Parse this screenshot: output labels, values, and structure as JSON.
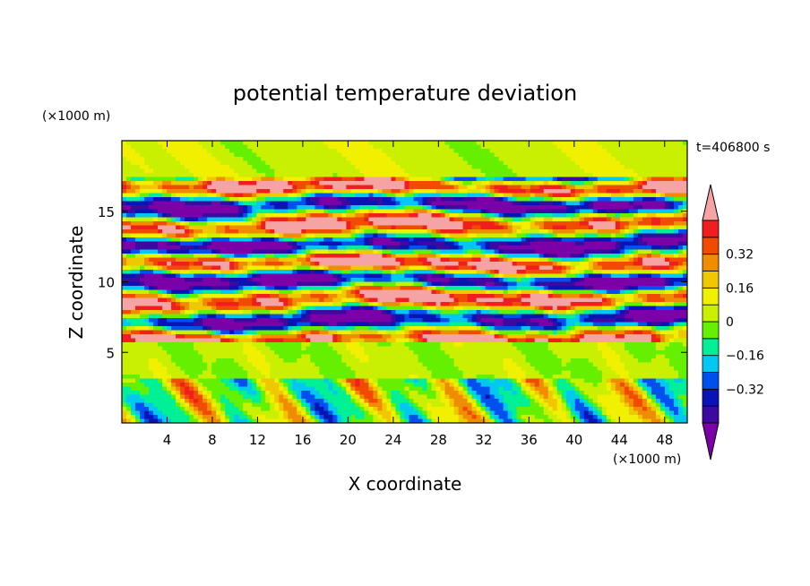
{
  "chart_data": {
    "type": "contour",
    "title": "potential temperature deviation",
    "xlabel": "X coordinate",
    "ylabel": "Z coordinate",
    "x_unit": "(×1000 m)",
    "y_unit": "(×1000 m)",
    "time_label": "t=406800 s",
    "xlim": [
      0,
      50
    ],
    "ylim": [
      0,
      20
    ],
    "x_ticks": [
      4,
      8,
      12,
      16,
      20,
      24,
      28,
      32,
      36,
      40,
      44,
      48
    ],
    "y_ticks": [
      5,
      10,
      15
    ],
    "colorbar": {
      "levels": [
        -0.48,
        -0.4,
        -0.32,
        -0.24,
        -0.16,
        -0.08,
        0,
        0.08,
        0.16,
        0.24,
        0.32,
        0.4,
        0.48
      ],
      "labels": [
        "0.32",
        "0.16",
        "0",
        "−0.16",
        "−0.32"
      ],
      "label_values": [
        0.32,
        0.16,
        0,
        -0.16,
        -0.32
      ],
      "colors": [
        "#7b00a8",
        "#3c0aa0",
        "#0a14b4",
        "#0050f0",
        "#00c8f0",
        "#00f096",
        "#64f000",
        "#c8f000",
        "#f0f000",
        "#f0c800",
        "#f08c00",
        "#f04b00",
        "#f01e1e",
        "#f5a3a3"
      ]
    },
    "bands": [
      {
        "z_range": [
          17.5,
          20
        ],
        "pattern": "green-light"
      },
      {
        "z_range": [
          5.5,
          17.5
        ],
        "pattern": "alternating-extreme"
      },
      {
        "z_range": [
          3,
          5.5
        ],
        "pattern": "green"
      },
      {
        "z_range": [
          0,
          3
        ],
        "pattern": "mixed-convective"
      }
    ]
  }
}
